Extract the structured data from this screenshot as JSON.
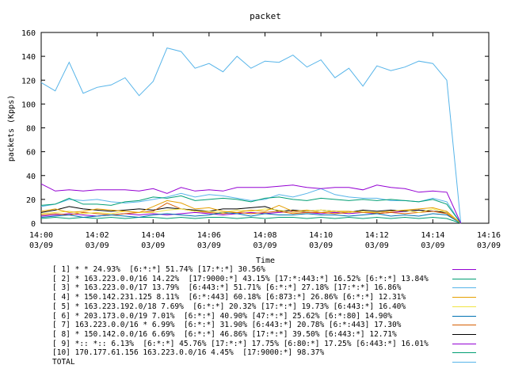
{
  "chart_data": {
    "type": "line",
    "title": "packet",
    "xlabel": "Time",
    "ylabel": "packets (Kpps)",
    "ylim": [
      0,
      160
    ],
    "yticks": [
      "0",
      "20",
      "40",
      "60",
      "80",
      "100",
      "120",
      "140",
      "160"
    ],
    "xlim": [
      "14:00",
      "14:16"
    ],
    "xticks": [
      {
        "time": "14:00",
        "date": "03/09"
      },
      {
        "time": "14:02",
        "date": "03/09"
      },
      {
        "time": "14:04",
        "date": "03/09"
      },
      {
        "time": "14:06",
        "date": "03/09"
      },
      {
        "time": "14:08",
        "date": "03/09"
      },
      {
        "time": "14:10",
        "date": "03/09"
      },
      {
        "time": "14:12",
        "date": "03/09"
      },
      {
        "time": "14:14",
        "date": "03/09"
      },
      {
        "time": "14:16",
        "date": "03/09"
      }
    ],
    "x": [
      "14:00",
      "14:00:30",
      "14:01",
      "14:01:30",
      "14:02",
      "14:02:30",
      "14:03",
      "14:03:30",
      "14:04",
      "14:04:30",
      "14:05",
      "14:05:30",
      "14:06",
      "14:06:30",
      "14:07",
      "14:07:30",
      "14:08",
      "14:08:30",
      "14:09",
      "14:09:30",
      "14:10",
      "14:10:30",
      "14:11",
      "14:11:30",
      "14:12",
      "14:12:30",
      "14:13",
      "14:13:30",
      "14:14",
      "14:14:30",
      "14:15"
    ],
    "grid": false,
    "legend_position": "bottom",
    "series": [
      {
        "name": "[ 1] * * 24.93%  [6:*:*] 51.74% [17:*:*] 30.56%",
        "color": "#9400d3",
        "values": [
          33,
          27,
          28,
          27,
          28,
          28,
          28,
          27,
          29,
          25,
          30,
          27,
          28,
          27,
          30,
          30,
          30,
          31,
          32,
          30,
          29,
          30,
          30,
          28,
          32,
          30,
          29,
          26,
          27,
          26,
          0
        ]
      },
      {
        "name": "[ 2] * 163.223.0.0/16 14.22%  [17:9000:*] 43.15% [17:*:443:*] 16.52% [6:*:*] 13.84%",
        "color": "#009e73",
        "values": [
          15,
          16,
          21,
          16,
          16,
          15,
          18,
          19,
          22,
          21,
          23,
          19,
          20,
          21,
          20,
          18,
          21,
          22,
          20,
          19,
          21,
          20,
          19,
          20,
          19,
          20,
          19,
          18,
          20,
          16,
          0
        ]
      },
      {
        "name": "[ 3] * 163.223.0.0/17 13.79%  [6:443:*] 51.71% [6:*:*] 27.18% [17:*:*] 16.86%",
        "color": "#56b4e9",
        "values": [
          14,
          16,
          20,
          19,
          20,
          18,
          17,
          18,
          20,
          22,
          25,
          22,
          24,
          23,
          21,
          19,
          20,
          24,
          22,
          25,
          29,
          24,
          22,
          21,
          21,
          19,
          19,
          18,
          21,
          18,
          0
        ]
      },
      {
        "name": "[ 4] * 150.142.231.125 8.11%  [6:*:443] 60.18% [6:873:*] 26.86% [6:*:*] 12.31%",
        "color": "#e69f00",
        "values": [
          10,
          12,
          9,
          10,
          12,
          11,
          10,
          9,
          14,
          19,
          17,
          12,
          13,
          10,
          9,
          11,
          10,
          15,
          10,
          11,
          9,
          10,
          10,
          9,
          9,
          10,
          11,
          12,
          13,
          10,
          0
        ]
      },
      {
        "name": "[ 5] * 163.223.192.0/18 7.69%  [6:*:*] 20.32% [17:*:*] 19.73% [6:443:*] 16.40%",
        "color": "#f0e442",
        "values": [
          8,
          9,
          10,
          8,
          9,
          8,
          10,
          9,
          9,
          11,
          12,
          10,
          10,
          9,
          11,
          10,
          12,
          11,
          9,
          10,
          11,
          10,
          9,
          10,
          9,
          10,
          11,
          9,
          12,
          9,
          0
        ]
      },
      {
        "name": "[ 6] * 203.173.0.0/19 7.01%  [6:*:*] 40.90% [47:*:*] 25.62% [6:*:80] 14.90%",
        "color": "#0072b2",
        "values": [
          5,
          6,
          7,
          5,
          6,
          7,
          6,
          5,
          7,
          8,
          7,
          6,
          7,
          9,
          8,
          6,
          8,
          7,
          7,
          8,
          7,
          7,
          6,
          7,
          8,
          6,
          7,
          6,
          8,
          7,
          0
        ]
      },
      {
        "name": "[ 7] 163.223.0.0/16 * 6.99%  [6:*:*] 31.90% [6:443:*] 20.78% [6:*:443] 17.30%",
        "color": "#d55e00",
        "values": [
          7,
          8,
          7,
          9,
          8,
          7,
          8,
          9,
          10,
          17,
          12,
          10,
          9,
          8,
          9,
          8,
          9,
          10,
          8,
          9,
          9,
          8,
          9,
          10,
          8,
          9,
          8,
          9,
          10,
          8,
          0
        ]
      },
      {
        "name": "[ 8] * 150.142.0.0/16 6.69%  [6:*:*] 46.86% [17:*:*] 39.50% [6:443:*] 12.71%",
        "color": "#000000",
        "values": [
          9,
          11,
          14,
          12,
          11,
          10,
          11,
          12,
          11,
          13,
          12,
          11,
          10,
          12,
          12,
          13,
          14,
          10,
          11,
          10,
          11,
          10,
          9,
          11,
          10,
          11,
          10,
          11,
          10,
          9,
          0
        ]
      },
      {
        "name": "[ 9] *:: *:: 6.13%  [6:*:*] 45.76% [17:*:*] 17.75% [6:80:*] 17.25% [6:443:*] 16.01%",
        "color": "#9400d3",
        "values": [
          6,
          7,
          8,
          7,
          6,
          7,
          8,
          7,
          8,
          7,
          8,
          9,
          8,
          7,
          8,
          9,
          8,
          9,
          10,
          9,
          8,
          9,
          8,
          9,
          8,
          9,
          10,
          11,
          10,
          9,
          0
        ]
      },
      {
        "name": "[10] 170.177.61.156 163.223.0.0/16 4.45%  [17:9000:*] 98.37%",
        "color": "#009e73",
        "values": [
          4,
          5,
          4,
          5,
          4,
          5,
          4,
          5,
          5,
          4,
          5,
          4,
          5,
          5,
          4,
          5,
          4,
          5,
          5,
          4,
          5,
          4,
          5,
          4,
          5,
          4,
          5,
          4,
          5,
          4,
          0
        ]
      },
      {
        "name": "TOTAL",
        "color": "#56b4e9",
        "values": [
          118,
          111,
          135,
          109,
          114,
          116,
          122,
          107,
          119,
          147,
          144,
          130,
          134,
          127,
          140,
          130,
          136,
          135,
          141,
          131,
          137,
          122,
          130,
          115,
          132,
          128,
          131,
          136,
          134,
          120,
          0
        ]
      }
    ]
  }
}
